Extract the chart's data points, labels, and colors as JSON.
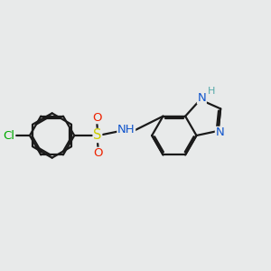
{
  "background_color": "#e8eaea",
  "bond_color": "#1a1a1a",
  "bond_width": 1.6,
  "atom_colors": {
    "Cl": "#00aa00",
    "S": "#cccc00",
    "O": "#ee2200",
    "N": "#1155cc",
    "NH": "#1155cc",
    "H": "#55aaaa"
  },
  "font_size": 9.5,
  "font_size_H": 8.0
}
